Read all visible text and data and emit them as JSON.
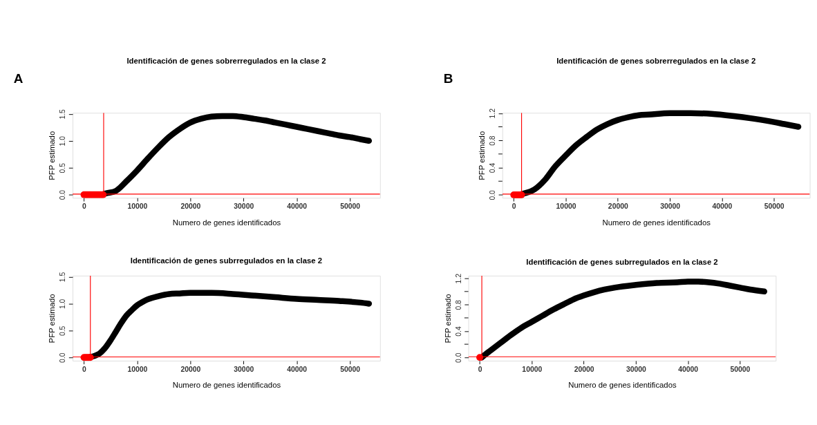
{
  "chart_data": [
    {
      "type": "line",
      "title": "Identificación de genes sobrerregulados en la clase 2",
      "xlabel": "Numero de genes identificados",
      "ylabel": "PFP estimado",
      "annotations": [
        "A"
      ],
      "xlim": [
        -2140,
        55680
      ],
      "ylim": [
        -0.06,
        1.52
      ],
      "xticks": [
        0,
        10000,
        20000,
        30000,
        40000,
        50000
      ],
      "yticks": [
        {
          "value": 0,
          "label": "0.0"
        },
        {
          "value": 0.5,
          "label": "0.5"
        },
        {
          "value": 1,
          "label": "1.0"
        },
        {
          "value": 1.5,
          "label": "1.5"
        }
      ],
      "grid": false,
      "marker": "none",
      "line_style": "solid",
      "series": [
        {
          "color": "#000000",
          "x": [
            3700,
            4000,
            6000,
            8000,
            10000,
            12000,
            14000,
            16000,
            18000,
            20000,
            22000,
            24000,
            26000,
            28000,
            30000,
            32000,
            34000,
            36000,
            38000,
            40000,
            42000,
            44000,
            46000,
            48000,
            50000,
            52000,
            53600
          ],
          "values": [
            0.01,
            0.02,
            0.07,
            0.25,
            0.45,
            0.67,
            0.88,
            1.07,
            1.22,
            1.34,
            1.41,
            1.45,
            1.46,
            1.46,
            1.44,
            1.41,
            1.38,
            1.34,
            1.3,
            1.26,
            1.22,
            1.18,
            1.14,
            1.1,
            1.07,
            1.03,
            1.0
          ]
        },
        {
          "type": "scatter",
          "marker": "circle",
          "color": "#ff0000",
          "x": [
            0,
            300,
            600,
            900,
            1200,
            1500,
            1800,
            2100,
            2400,
            2700,
            3000,
            3300,
            3600
          ],
          "values": [
            0,
            0,
            0,
            0,
            0,
            0,
            0,
            0,
            0,
            0,
            0,
            0,
            0
          ]
        }
      ],
      "ref_lines": [
        {
          "axis": "y",
          "value": 0.01,
          "color": "#ff0000"
        },
        {
          "axis": "x",
          "value": 3700,
          "color": "#ff0000"
        }
      ]
    },
    {
      "type": "line",
      "title": "Identificación de genes sobrerregulados en la clase 2",
      "xlabel": "Numero de genes identificados",
      "ylabel": "PFP estimado",
      "annotations": [
        "B"
      ],
      "xlim": [
        -2190,
        56900
      ],
      "ylim": [
        -0.045,
        1.205
      ],
      "xticks": [
        0,
        10000,
        20000,
        30000,
        40000,
        50000
      ],
      "yticks": [
        {
          "value": 0,
          "label": "0.0"
        },
        {
          "value": 0.2,
          "label": null
        },
        {
          "value": 0.4,
          "label": "0.4"
        },
        {
          "value": 0.6,
          "label": null
        },
        {
          "value": 0.8,
          "label": "0.8"
        },
        {
          "value": 1,
          "label": null
        },
        {
          "value": 1.2,
          "label": "1.2"
        }
      ],
      "grid": false,
      "marker": "none",
      "line_style": "solid",
      "series": [
        {
          "color": "#000000",
          "x": [
            1500,
            2000,
            4000,
            6000,
            8000,
            10000,
            12000,
            14000,
            16000,
            18000,
            20000,
            22000,
            24000,
            26000,
            30000,
            34000,
            38000,
            42000,
            46000,
            50000,
            52000,
            54700
          ],
          "values": [
            0.01,
            0.02,
            0.08,
            0.22,
            0.42,
            0.58,
            0.73,
            0.85,
            0.96,
            1.04,
            1.1,
            1.14,
            1.17,
            1.18,
            1.2,
            1.2,
            1.19,
            1.16,
            1.12,
            1.07,
            1.04,
            1.0
          ]
        },
        {
          "type": "scatter",
          "marker": "circle",
          "color": "#ff0000",
          "x": [
            0,
            300,
            600,
            900,
            1200,
            1500
          ],
          "values": [
            0,
            0,
            0,
            0,
            0,
            0
          ]
        }
      ],
      "ref_lines": [
        {
          "axis": "y",
          "value": 0.01,
          "color": "#ff0000"
        },
        {
          "axis": "x",
          "value": 1500,
          "color": "#ff0000"
        }
      ]
    },
    {
      "type": "line",
      "title": "Identificación de genes subrregulados en la clase 2",
      "xlabel": "Numero de genes identificados",
      "ylabel": "PFP estimado",
      "xlim": [
        -2140,
        55680
      ],
      "ylim": [
        -0.06,
        1.52
      ],
      "xticks": [
        0,
        10000,
        20000,
        30000,
        40000,
        50000
      ],
      "yticks": [
        {
          "value": 0,
          "label": "0.0"
        },
        {
          "value": 0.5,
          "label": "0.5"
        },
        {
          "value": 1,
          "label": "1.0"
        },
        {
          "value": 1.5,
          "label": "1.5"
        }
      ],
      "grid": false,
      "marker": "none",
      "line_style": "solid",
      "series": [
        {
          "color": "#000000",
          "x": [
            1200,
            2000,
            3000,
            4000,
            5000,
            6000,
            7000,
            8000,
            9000,
            10000,
            11000,
            12000,
            14000,
            16000,
            18000,
            20000,
            24000,
            28000,
            32000,
            36000,
            40000,
            44000,
            48000,
            52000,
            53600
          ],
          "values": [
            0.01,
            0.03,
            0.08,
            0.18,
            0.32,
            0.48,
            0.64,
            0.78,
            0.88,
            0.97,
            1.03,
            1.08,
            1.14,
            1.18,
            1.19,
            1.2,
            1.2,
            1.18,
            1.15,
            1.12,
            1.09,
            1.07,
            1.05,
            1.02,
            1.0
          ]
        },
        {
          "type": "scatter",
          "marker": "circle",
          "color": "#ff0000",
          "x": [
            0,
            300,
            600,
            900,
            1200
          ],
          "values": [
            0,
            0,
            0,
            0,
            0
          ]
        }
      ],
      "ref_lines": [
        {
          "axis": "y",
          "value": 0.01,
          "color": "#ff0000"
        },
        {
          "axis": "x",
          "value": 1200,
          "color": "#ff0000"
        }
      ]
    },
    {
      "type": "line",
      "title": "Identificación de genes subrregulados en la clase 2",
      "xlabel": "Numero de genes identificados",
      "ylabel": "PFP estimado",
      "xlim": [
        -2190,
        56900
      ],
      "ylim": [
        -0.05,
        1.24
      ],
      "xticks": [
        0,
        10000,
        20000,
        30000,
        40000,
        50000
      ],
      "yticks": [
        {
          "value": 0,
          "label": "0.0"
        },
        {
          "value": 0.2,
          "label": null
        },
        {
          "value": 0.4,
          "label": "0.4"
        },
        {
          "value": 0.6,
          "label": null
        },
        {
          "value": 0.8,
          "label": "0.8"
        },
        {
          "value": 1,
          "label": null
        },
        {
          "value": 1.2,
          "label": "1.2"
        }
      ],
      "grid": false,
      "marker": "none",
      "line_style": "solid",
      "series": [
        {
          "color": "#000000",
          "x": [
            400,
            1000,
            2000,
            4000,
            6000,
            8000,
            10000,
            12000,
            14000,
            16000,
            18000,
            20000,
            22000,
            24000,
            26000,
            30000,
            34000,
            38000,
            40000,
            42000,
            44000,
            46000,
            48000,
            50000,
            52000,
            54700
          ],
          "values": [
            0.0,
            0.04,
            0.1,
            0.22,
            0.34,
            0.45,
            0.54,
            0.63,
            0.72,
            0.8,
            0.88,
            0.94,
            0.99,
            1.03,
            1.06,
            1.1,
            1.13,
            1.14,
            1.15,
            1.15,
            1.14,
            1.12,
            1.09,
            1.06,
            1.03,
            1.0
          ]
        },
        {
          "type": "scatter",
          "marker": "circle",
          "color": "#ff0000",
          "x": [
            0
          ],
          "values": [
            0
          ]
        }
      ],
      "ref_lines": [
        {
          "axis": "y",
          "value": 0.01,
          "color": "#ff0000"
        },
        {
          "axis": "x",
          "value": 400,
          "color": "#ff0000"
        }
      ]
    }
  ]
}
